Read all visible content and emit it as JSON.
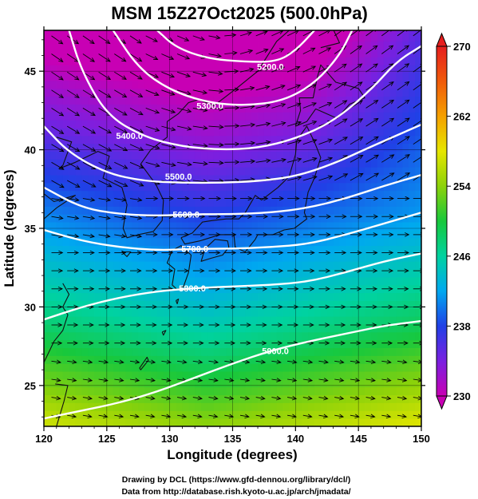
{
  "title": "MSM 15Z27Oct2025 (500.0hPa)",
  "x_axis": {
    "label": "Longitude (degrees)",
    "range": [
      120,
      150
    ],
    "ticks": [
      "120",
      "125",
      "130",
      "135",
      "140",
      "145",
      "150"
    ]
  },
  "y_axis": {
    "label": "Latitude  (degrees)",
    "range": [
      22.4,
      47.6
    ],
    "ticks": [
      "25",
      "30",
      "35",
      "40",
      "45"
    ]
  },
  "colorbar": {
    "range": [
      230,
      270
    ],
    "ticks": [
      "270",
      "262",
      "254",
      "246",
      "238",
      "230"
    ],
    "colors": [
      "#c800b4",
      "#7a20e0",
      "#2040e6",
      "#00a8f0",
      "#00d2a0",
      "#18c83c",
      "#8cd20a",
      "#e6e600",
      "#f5a000",
      "#f05a0a",
      "#e61e1e"
    ]
  },
  "contours": [
    {
      "label": "5200.0",
      "label_lon": 138.0,
      "label_lat": 45.3
    },
    {
      "label": "5300.0",
      "label_lon": 133.2,
      "label_lat": 42.8
    },
    {
      "label": "5400.0",
      "label_lon": 126.8,
      "label_lat": 40.9
    },
    {
      "label": "5500.0",
      "label_lon": 130.7,
      "label_lat": 38.3
    },
    {
      "label": "5600.0",
      "label_lon": 131.3,
      "label_lat": 35.9
    },
    {
      "label": "5700.0",
      "label_lon": 132.0,
      "label_lat": 33.7
    },
    {
      "label": "5800.0",
      "label_lon": 131.8,
      "label_lat": 31.2
    },
    {
      "label": "5900.0",
      "label_lon": 138.4,
      "label_lat": 27.2
    }
  ],
  "credits": {
    "line1": "Drawing by DCL (https://www.gfd-dennou.org/library/dcl/)",
    "line2": "Data from http://database.rish.kyoto-u.ac.jp/arch/jmadata/"
  }
}
